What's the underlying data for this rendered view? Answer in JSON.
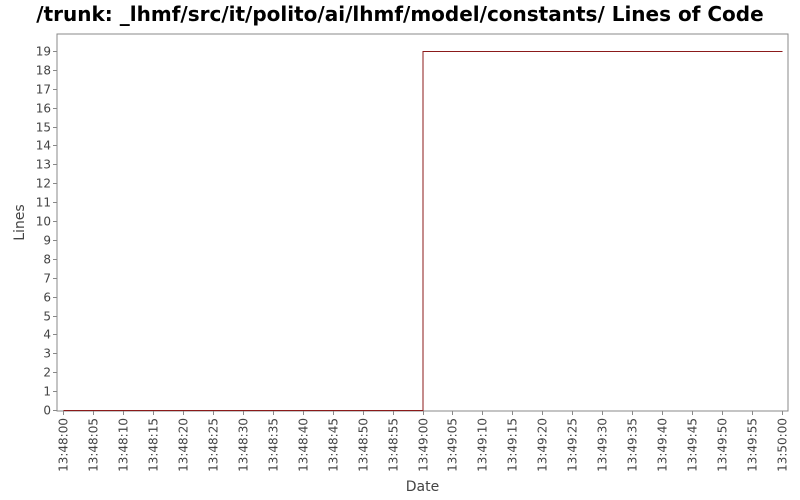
{
  "chart_data": {
    "type": "line",
    "title": "/trunk: _lhmf/src/it/polito/ai/lhmf/model/constants/ Lines of Code",
    "xlabel": "Date",
    "ylabel": "Lines",
    "x_ticks": [
      "13:48:00",
      "13:48:05",
      "13:48:10",
      "13:48:15",
      "13:48:20",
      "13:48:25",
      "13:48:30",
      "13:48:35",
      "13:48:40",
      "13:48:45",
      "13:48:50",
      "13:48:55",
      "13:49:00",
      "13:49:05",
      "13:49:10",
      "13:49:15",
      "13:49:20",
      "13:49:25",
      "13:49:30",
      "13:49:35",
      "13:49:40",
      "13:49:45",
      "13:49:50",
      "13:49:55",
      "13:50:00"
    ],
    "y_ticks": [
      0,
      1,
      2,
      3,
      4,
      5,
      6,
      7,
      8,
      9,
      10,
      11,
      12,
      13,
      14,
      15,
      16,
      17,
      18,
      19
    ],
    "xlim": [
      "13:47:59",
      "13:50:01"
    ],
    "ylim": [
      -0.05,
      19.9
    ],
    "series": [
      {
        "color": "#8b1a1a",
        "step": true,
        "points": [
          {
            "x": "13:48:00",
            "y": 0
          },
          {
            "x": "13:49:00",
            "y": 19
          },
          {
            "x": "13:50:00",
            "y": 19
          }
        ]
      }
    ],
    "grid": false,
    "plot_background": "#ffffff",
    "axis_color": "#888888"
  }
}
